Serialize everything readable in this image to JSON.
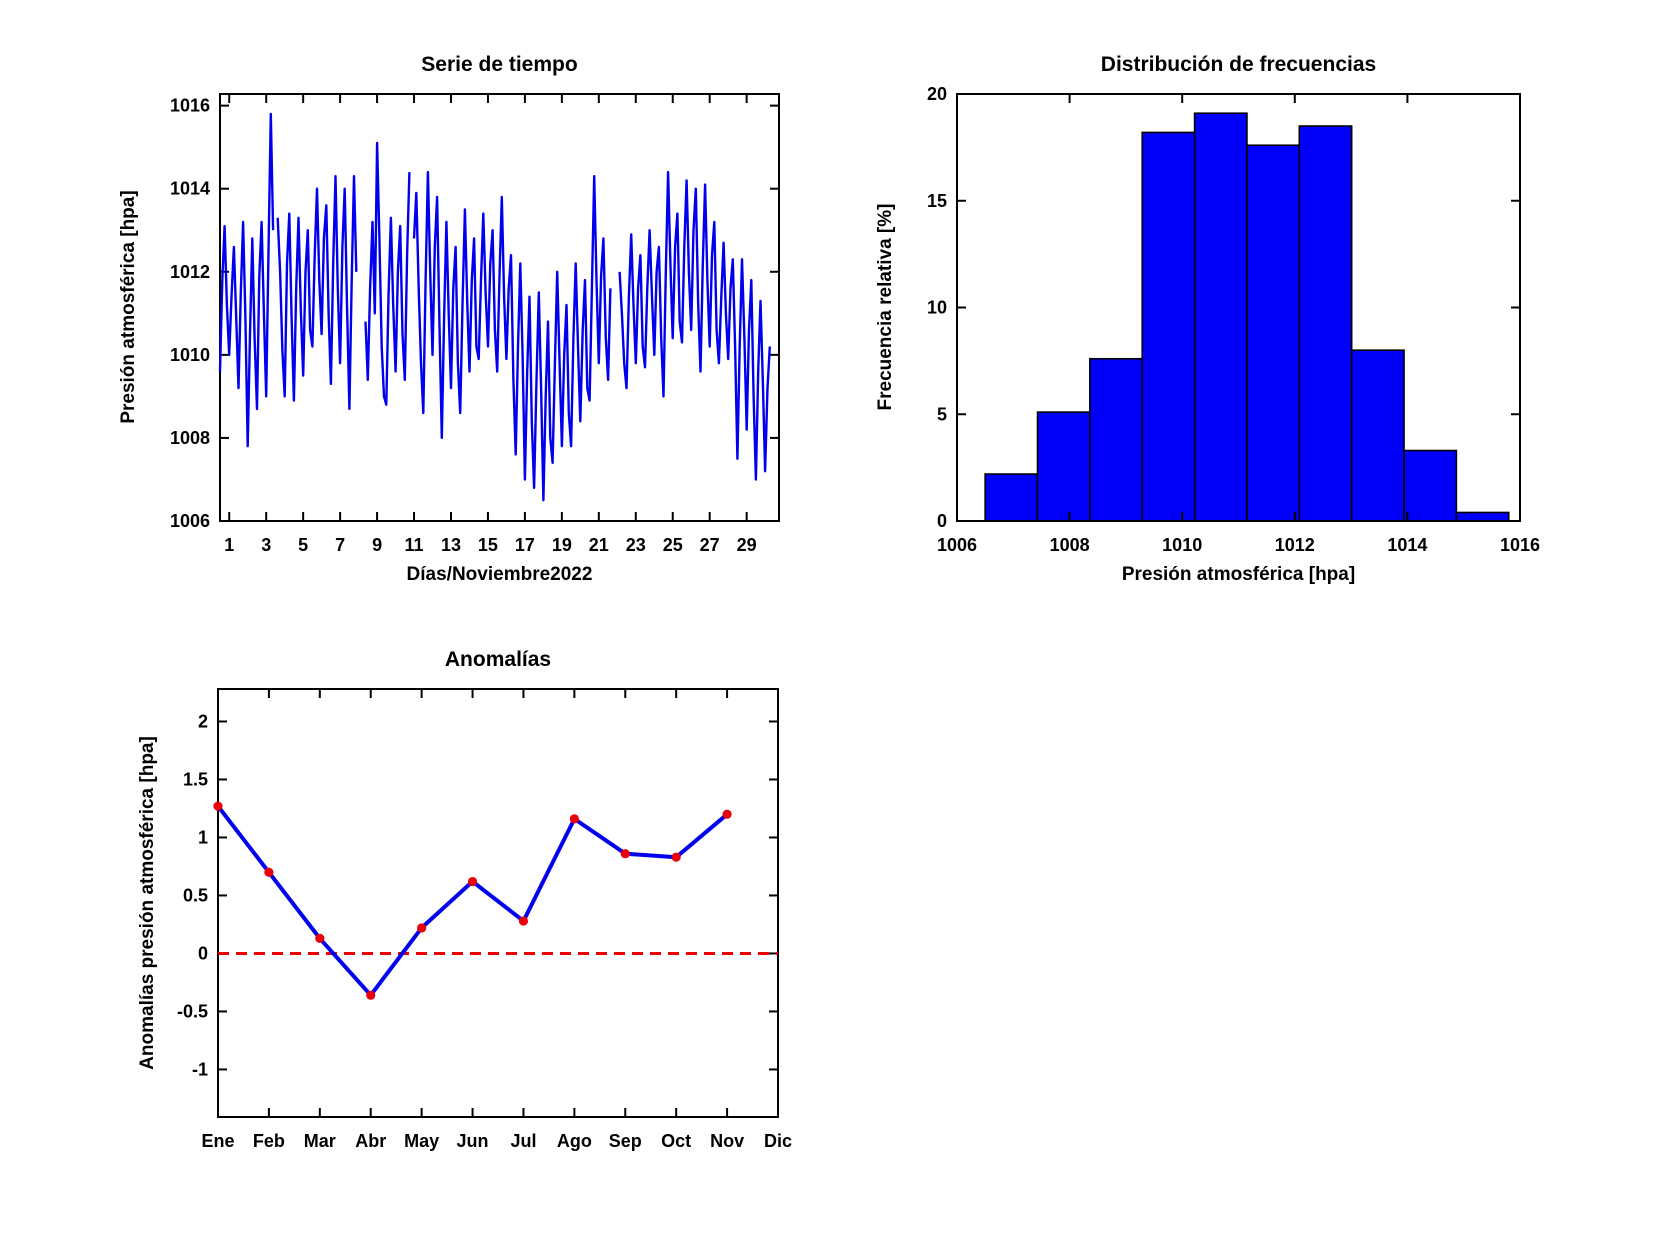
{
  "chart_data": [
    {
      "id": "time_series",
      "type": "line",
      "title": "Serie de tiempo",
      "xlabel": "Días/Noviembre2022",
      "ylabel": "Presión atmosférica [hpa]",
      "xlim": [
        0.5,
        30.75
      ],
      "ylim": [
        1006,
        1016.28
      ],
      "xticks": [
        1,
        3,
        5,
        7,
        9,
        11,
        13,
        15,
        17,
        19,
        21,
        23,
        25,
        27,
        29
      ],
      "yticks": [
        1006,
        1008,
        1010,
        1012,
        1014,
        1016
      ],
      "grid": false,
      "legend": null,
      "line_color": "#0000EE",
      "line_width": 2.4,
      "x_start": 0.5,
      "x_step": 0.125,
      "y": [
        1009.6,
        1011.8,
        1013.1,
        1011.2,
        1010.0,
        1011.4,
        1012.6,
        1010.9,
        1009.2,
        1011.5,
        1013.2,
        1010.9,
        1007.8,
        1010.5,
        1012.8,
        1010.4,
        1008.7,
        1011.9,
        1013.2,
        1011.0,
        1009.0,
        1012.5,
        1015.8,
        1013.0,
        null,
        1013.3,
        1012.0,
        1010.1,
        1009.0,
        1012.2,
        1013.4,
        1010.9,
        1008.9,
        1011.6,
        1013.3,
        1011.1,
        1009.5,
        1012.0,
        1013.0,
        1010.6,
        1010.2,
        1012.4,
        1014.0,
        1011.8,
        1010.5,
        1012.8,
        1013.6,
        1011.0,
        1009.3,
        1012.2,
        1014.3,
        1011.6,
        1009.8,
        1012.6,
        1014.0,
        1011.2,
        1008.7,
        1011.8,
        1014.3,
        1012.0,
        null,
        1015.2,
        null,
        1010.8,
        1009.4,
        1011.6,
        1013.2,
        1011.0,
        1015.1,
        1012.8,
        1010.2,
        1009.0,
        1008.8,
        1011.5,
        1013.3,
        1011.2,
        1009.6,
        1012.0,
        1013.1,
        1010.5,
        1009.4,
        1012.4,
        1014.4,
        null,
        1012.8,
        1013.9,
        1011.6,
        1009.8,
        1008.6,
        1011.8,
        1014.4,
        1012.0,
        1010.0,
        1012.6,
        1013.8,
        1010.8,
        1008.0,
        1010.9,
        1013.2,
        1011.0,
        1009.2,
        1011.6,
        1012.6,
        1009.8,
        1008.6,
        1011.2,
        1013.5,
        1011.3,
        1009.6,
        1011.8,
        1012.8,
        1010.2,
        1009.9,
        1011.8,
        1013.4,
        1011.5,
        1010.2,
        1012.2,
        1013.0,
        1010.6,
        1009.6,
        1011.9,
        1013.8,
        1011.4,
        1009.9,
        1011.6,
        1012.4,
        1009.4,
        1007.6,
        1010.2,
        1012.2,
        1010.0,
        1007.0,
        1009.6,
        1011.4,
        1008.4,
        1006.8,
        1009.4,
        1011.5,
        1009.2,
        1006.5,
        1009.0,
        1010.8,
        1008.0,
        1007.4,
        1009.8,
        1012.0,
        1009.8,
        1007.8,
        1010.0,
        1011.2,
        1008.6,
        1007.8,
        1010.4,
        1012.2,
        1010.2,
        1008.4,
        1010.6,
        1011.8,
        1009.2,
        1008.9,
        1011.6,
        1014.3,
        1011.8,
        1009.8,
        1011.9,
        1012.8,
        1010.4,
        1009.4,
        1011.6,
        null,
        1013.2,
        null,
        1012.0,
        1011.0,
        1009.8,
        1009.2,
        1011.4,
        1012.9,
        1011.2,
        1009.8,
        1011.6,
        1012.4,
        1010.2,
        1009.7,
        1011.6,
        1013.0,
        1011.4,
        1010.0,
        1012.0,
        1012.6,
        1010.4,
        1009.0,
        1012.0,
        1014.4,
        1012.2,
        1010.4,
        1012.6,
        1013.4,
        1010.8,
        1010.3,
        1012.6,
        1014.2,
        1012.0,
        1010.6,
        1013.0,
        1014.0,
        1011.2,
        1009.6,
        1012.2,
        1014.1,
        1011.8,
        1010.2,
        1012.4,
        1013.2,
        1010.6,
        1009.8,
        1011.4,
        1012.7,
        1011.0,
        1009.9,
        1011.6,
        1012.3,
        1010.2,
        1007.5,
        1010.2,
        1012.3,
        1010.4,
        1008.2,
        1010.6,
        1011.8,
        1009.0,
        1007.0,
        1009.6,
        1011.3,
        1009.4,
        1007.2,
        1009.2,
        1010.2
      ]
    },
    {
      "id": "histogram",
      "type": "bar",
      "title": "Distribución de frecuencias",
      "xlabel": "Presión atmosférica [hpa]",
      "ylabel": "Frecuencia relativa [%]",
      "xlim": [
        1006,
        1016
      ],
      "ylim": [
        0,
        20
      ],
      "xticks": [
        1006,
        1008,
        1010,
        1012,
        1014,
        1016
      ],
      "yticks": [
        0,
        5,
        10,
        15,
        20
      ],
      "grid": false,
      "legend": null,
      "bar_fill": "#0000FA",
      "bar_edge": "#000000",
      "bin_start": 1006.5,
      "bin_width": 0.93,
      "values": [
        2.2,
        5.1,
        7.6,
        18.2,
        19.1,
        17.6,
        18.5,
        8.0,
        3.3,
        0.4
      ]
    },
    {
      "id": "anomalies",
      "type": "line-markers",
      "title": "Anomalías",
      "xlabel": "",
      "ylabel": "Anomalías presión atmosférica [hpa]",
      "xlim": [
        1,
        12
      ],
      "ylim": [
        -1.41,
        2.28
      ],
      "categories": [
        "Ene",
        "Feb",
        "Mar",
        "Abr",
        "May",
        "Jun",
        "Jul",
        "Ago",
        "Sep",
        "Oct",
        "Nov",
        "Dic"
      ],
      "yticks": [
        -1,
        -0.5,
        0,
        0.5,
        1,
        1.5,
        2
      ],
      "ytick_labels": [
        "-1",
        "-0.5",
        "0",
        "0.5",
        "1",
        "1.5",
        "2"
      ],
      "grid": false,
      "legend": null,
      "values": [
        1.27,
        0.7,
        0.13,
        -0.36,
        0.22,
        0.62,
        0.28,
        1.16,
        0.86,
        0.83,
        1.2
      ],
      "line_color": "#0000EE",
      "line_width": 4,
      "marker_color": "#E8000B",
      "zero_line": {
        "y": 0,
        "color": "#EE0000",
        "style": "dashed"
      }
    }
  ]
}
